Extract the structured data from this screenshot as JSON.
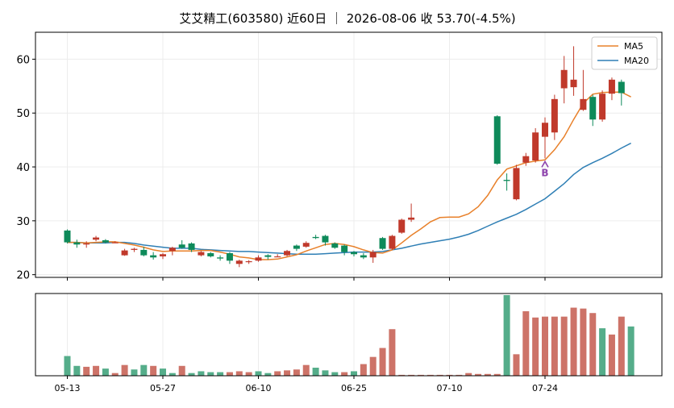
{
  "title": "艾艾精工(603580) 近60日 ｜ 2026-08-06 收 53.70(-4.5%)",
  "colors": {
    "up": "#c0392b",
    "down": "#0e8a5a",
    "up_vol": "#cd7368",
    "down_vol": "#55ad8a",
    "ma5": "#e8802a",
    "ma20": "#2f7fb5",
    "marker": "#8e44ad"
  },
  "chart_data": [
    {
      "type": "candlestick",
      "title": "艾艾精工(603580) 近60日 ｜ 2026-08-06 收 53.70(-4.5%)",
      "ylim": [
        19.5,
        65
      ],
      "yticks": [
        20,
        30,
        40,
        50,
        60
      ],
      "x_tick_labels": [
        "05-13",
        "05-27",
        "06-10",
        "06-25",
        "07-10",
        "07-24"
      ],
      "x_tick_indices": [
        0,
        10,
        20,
        30,
        40,
        50
      ],
      "grid": true,
      "legend": {
        "position": "top-right",
        "entries": [
          "MA5",
          "MA20"
        ]
      },
      "candles": [
        {
          "o": 28.2,
          "h": 28.4,
          "l": 25.8,
          "c": 26.0
        },
        {
          "o": 26.0,
          "h": 26.5,
          "l": 25.0,
          "c": 25.6
        },
        {
          "o": 25.6,
          "h": 26.2,
          "l": 25.0,
          "c": 25.8
        },
        {
          "o": 26.5,
          "h": 27.2,
          "l": 26.2,
          "c": 26.9
        },
        {
          "o": 26.4,
          "h": 26.6,
          "l": 25.8,
          "c": 26.0
        },
        {
          "o": 26.0,
          "h": 26.2,
          "l": 25.9,
          "c": 26.0
        },
        {
          "o": 23.6,
          "h": 24.8,
          "l": 23.5,
          "c": 24.5
        },
        {
          "o": 24.6,
          "h": 25.0,
          "l": 24.2,
          "c": 24.8
        },
        {
          "o": 24.6,
          "h": 25.2,
          "l": 23.4,
          "c": 23.6
        },
        {
          "o": 23.6,
          "h": 24.2,
          "l": 22.8,
          "c": 23.2
        },
        {
          "o": 23.4,
          "h": 24.0,
          "l": 22.9,
          "c": 23.8
        },
        {
          "o": 24.4,
          "h": 25.2,
          "l": 23.6,
          "c": 25.0
        },
        {
          "o": 25.6,
          "h": 26.4,
          "l": 24.8,
          "c": 25.0
        },
        {
          "o": 25.8,
          "h": 26.0,
          "l": 24.2,
          "c": 24.6
        },
        {
          "o": 23.6,
          "h": 24.4,
          "l": 23.4,
          "c": 24.2
        },
        {
          "o": 24.0,
          "h": 24.2,
          "l": 23.2,
          "c": 23.4
        },
        {
          "o": 23.2,
          "h": 23.6,
          "l": 22.6,
          "c": 23.0
        },
        {
          "o": 24.0,
          "h": 24.2,
          "l": 22.0,
          "c": 22.6
        },
        {
          "o": 22.0,
          "h": 22.8,
          "l": 21.4,
          "c": 22.6
        },
        {
          "o": 22.4,
          "h": 22.7,
          "l": 22.0,
          "c": 22.5
        },
        {
          "o": 22.6,
          "h": 23.6,
          "l": 22.4,
          "c": 23.2
        },
        {
          "o": 23.6,
          "h": 23.8,
          "l": 22.8,
          "c": 23.3
        },
        {
          "o": 23.4,
          "h": 23.8,
          "l": 23.3,
          "c": 23.4
        },
        {
          "o": 23.6,
          "h": 24.6,
          "l": 23.4,
          "c": 24.4
        },
        {
          "o": 25.4,
          "h": 25.6,
          "l": 24.4,
          "c": 24.8
        },
        {
          "o": 25.2,
          "h": 26.2,
          "l": 25.0,
          "c": 25.9
        },
        {
          "o": 27.0,
          "h": 27.4,
          "l": 26.6,
          "c": 26.8
        },
        {
          "o": 27.2,
          "h": 27.4,
          "l": 25.4,
          "c": 26.0
        },
        {
          "o": 25.8,
          "h": 26.0,
          "l": 24.8,
          "c": 25.0
        },
        {
          "o": 25.4,
          "h": 25.6,
          "l": 23.6,
          "c": 24.2
        },
        {
          "o": 24.2,
          "h": 24.4,
          "l": 23.4,
          "c": 23.8
        },
        {
          "o": 23.6,
          "h": 24.0,
          "l": 22.9,
          "c": 23.2
        },
        {
          "o": 23.2,
          "h": 24.6,
          "l": 22.2,
          "c": 24.2
        },
        {
          "o": 26.8,
          "h": 27.0,
          "l": 24.6,
          "c": 24.8
        },
        {
          "o": 24.8,
          "h": 27.4,
          "l": 24.6,
          "c": 27.2
        },
        {
          "o": 27.8,
          "h": 30.4,
          "l": 27.6,
          "c": 30.2
        },
        {
          "o": 30.2,
          "h": 33.2,
          "l": 29.8,
          "c": 30.6
        },
        null,
        null,
        null,
        null,
        null,
        null,
        null,
        null,
        {
          "o": 49.4,
          "h": 49.6,
          "l": 40.4,
          "c": 40.6
        },
        {
          "o": 37.6,
          "h": 38.8,
          "l": 35.6,
          "c": 37.4
        },
        {
          "o": 34.0,
          "h": 40.4,
          "l": 33.8,
          "c": 39.8
        },
        {
          "o": 40.8,
          "h": 42.6,
          "l": 40.2,
          "c": 42.0
        },
        {
          "o": 41.2,
          "h": 47.2,
          "l": 40.8,
          "c": 46.4
        },
        {
          "o": 45.6,
          "h": 49.2,
          "l": 41.6,
          "c": 48.2
        },
        {
          "o": 46.4,
          "h": 53.4,
          "l": 45.0,
          "c": 52.6
        },
        {
          "o": 54.6,
          "h": 60.6,
          "l": 51.8,
          "c": 58.0
        },
        {
          "o": 54.8,
          "h": 62.4,
          "l": 53.2,
          "c": 56.2
        },
        {
          "o": 50.6,
          "h": 58.0,
          "l": 50.4,
          "c": 52.6
        },
        {
          "o": 53.0,
          "h": 53.4,
          "l": 47.6,
          "c": 48.8
        },
        {
          "o": 48.8,
          "h": 54.2,
          "l": 48.4,
          "c": 53.6
        },
        {
          "o": 53.6,
          "h": 56.6,
          "l": 52.4,
          "c": 56.2
        },
        {
          "o": 55.8,
          "h": 56.2,
          "l": 51.4,
          "c": 53.7
        }
      ],
      "ma5": [
        26.0,
        26.0,
        25.9,
        26.0,
        26.1,
        26.1,
        25.8,
        25.5,
        25.1,
        24.6,
        24.3,
        24.4,
        24.4,
        24.4,
        24.5,
        24.5,
        24.2,
        23.8,
        23.3,
        23.1,
        22.8,
        22.8,
        22.9,
        23.3,
        23.7,
        24.4,
        25.0,
        25.6,
        25.8,
        25.6,
        25.2,
        24.6,
        24.1,
        24.0,
        24.6,
        25.9,
        27.3,
        28.5,
        29.8,
        30.6,
        30.7,
        30.7,
        31.3,
        32.6,
        34.7,
        37.6,
        39.6,
        40.2,
        40.8,
        41.1,
        41.3,
        43.2,
        45.6,
        48.8,
        51.8,
        53.5,
        53.8,
        53.9,
        53.9,
        53.0
      ],
      "ma20": [
        26.0,
        26.0,
        25.9,
        25.9,
        25.9,
        26.0,
        26.0,
        25.8,
        25.5,
        25.3,
        25.1,
        24.9,
        24.9,
        24.9,
        24.7,
        24.6,
        24.5,
        24.4,
        24.3,
        24.3,
        24.2,
        24.1,
        24.0,
        23.9,
        23.8,
        23.8,
        23.8,
        23.9,
        24.0,
        24.1,
        24.2,
        24.2,
        24.2,
        24.3,
        24.6,
        24.9,
        25.3,
        25.7,
        26.0,
        26.3,
        26.6,
        27.0,
        27.5,
        28.2,
        29.0,
        29.8,
        30.5,
        31.2,
        32.1,
        33.1,
        34.1,
        35.5,
        36.9,
        38.6,
        39.9,
        40.8,
        41.6,
        42.5,
        43.5,
        44.4
      ],
      "markers": [
        {
          "index": 50,
          "label": "B"
        }
      ]
    },
    {
      "type": "bar",
      "name": "volume",
      "volume": [
        22,
        11,
        10,
        11,
        8,
        3,
        12,
        7,
        12,
        11,
        8,
        3,
        11,
        3,
        5,
        4,
        4,
        4,
        5,
        4,
        5,
        3,
        5,
        6,
        7,
        12,
        9,
        6,
        4,
        4,
        5,
        13,
        21,
        31,
        52,
        1,
        1,
        1,
        1,
        1,
        1,
        1,
        3,
        2,
        2,
        2,
        90,
        24,
        72,
        65,
        66,
        66,
        66,
        76,
        75,
        70,
        53,
        46,
        66,
        55
      ],
      "up": [
        false,
        false,
        true,
        true,
        false,
        true,
        true,
        false,
        false,
        true,
        false,
        false,
        true,
        false,
        false,
        false,
        false,
        true,
        true,
        true,
        false,
        false,
        true,
        true,
        true,
        true,
        false,
        false,
        false,
        true,
        false,
        true,
        true,
        true,
        true,
        true,
        true,
        true,
        true,
        true,
        true,
        true,
        true,
        true,
        true,
        true,
        false,
        true,
        true,
        true,
        true,
        true,
        true,
        true,
        true,
        true,
        false,
        true,
        true,
        false
      ]
    }
  ]
}
